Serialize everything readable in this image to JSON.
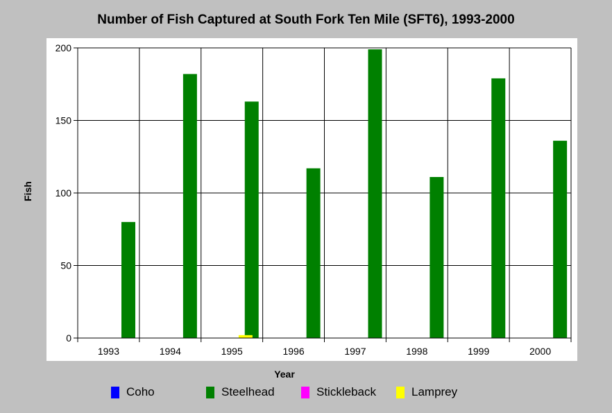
{
  "chart_data": {
    "type": "bar",
    "title": "Number of Fish Captured at South Fork Ten Mile (SFT6), 1993-2000",
    "xlabel": "Year",
    "ylabel": "Fish",
    "categories": [
      "1993",
      "1994",
      "1995",
      "1996",
      "1997",
      "1998",
      "1999",
      "2000"
    ],
    "ylim": [
      0,
      200
    ],
    "yticks": [
      "0",
      "50",
      "100",
      "150",
      "200"
    ],
    "grid": true,
    "legend_position": "bottom",
    "series": [
      {
        "name": "Coho",
        "color": "#0000ff",
        "values": [
          0,
          0,
          0,
          0,
          0,
          0,
          0,
          0
        ]
      },
      {
        "name": "Steelhead",
        "color": "#008000",
        "values": [
          80,
          182,
          163,
          117,
          199,
          111,
          179,
          136
        ]
      },
      {
        "name": "Stickleback",
        "color": "#ff00ff",
        "values": [
          0,
          0,
          0,
          0,
          0,
          0,
          0,
          0
        ]
      },
      {
        "name": "Lamprey",
        "color": "#ffff00",
        "values": [
          0,
          2,
          0,
          0,
          0,
          0,
          0,
          0
        ]
      }
    ]
  }
}
